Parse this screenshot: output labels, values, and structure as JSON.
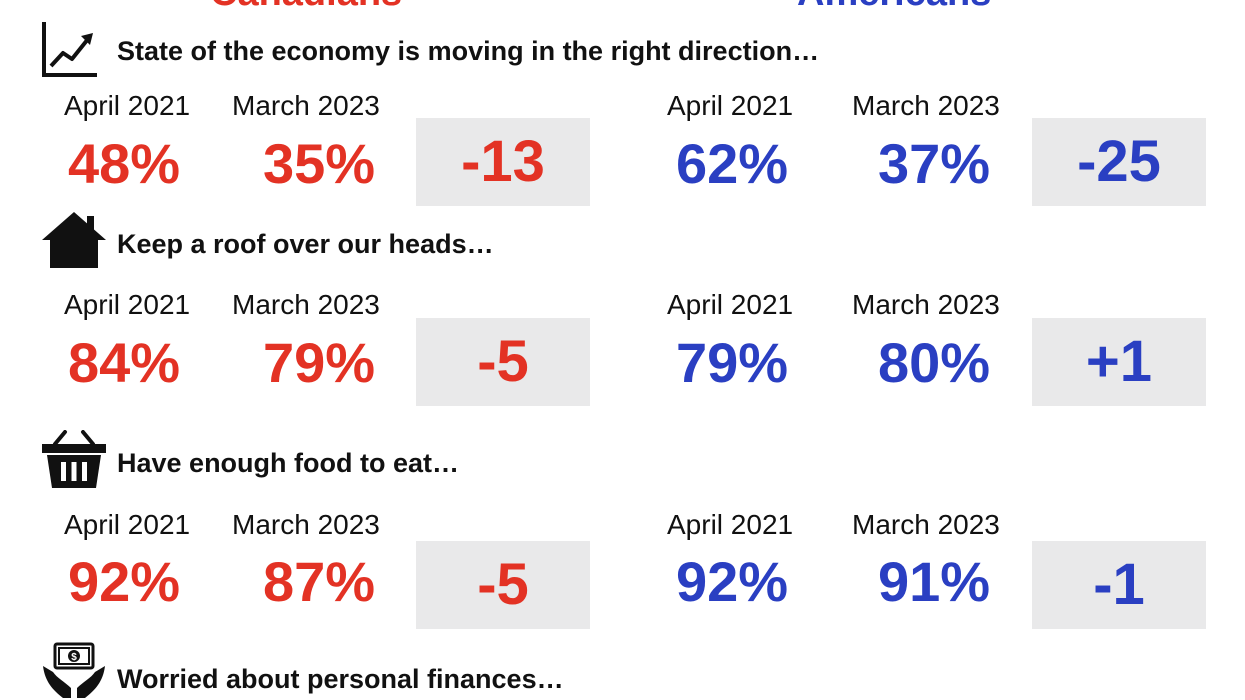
{
  "columns": {
    "left": {
      "label": "Canadians",
      "color": "#e33224"
    },
    "right": {
      "label": "Americans",
      "color": "#2a3fc2"
    }
  },
  "period_labels": {
    "before": "April 2021",
    "after": "March 2023"
  },
  "sections": [
    {
      "icon": "line-chart-icon",
      "title": "State of the economy is moving in the right direction…",
      "canada": {
        "before": "48%",
        "after": "35%",
        "change": "-13"
      },
      "usa": {
        "before": "62%",
        "after": "37%",
        "change": "-25"
      }
    },
    {
      "icon": "house-icon",
      "title": "Keep a roof over our heads…",
      "canada": {
        "before": "84%",
        "after": "79%",
        "change": "-5"
      },
      "usa": {
        "before": "79%",
        "after": "80%",
        "change": "+1"
      }
    },
    {
      "icon": "grocery-basket-icon",
      "title": "Have enough food to eat…",
      "canada": {
        "before": "92%",
        "after": "87%",
        "change": "-5"
      },
      "usa": {
        "before": "92%",
        "after": "91%",
        "change": "-1"
      }
    },
    {
      "icon": "money-hands-icon",
      "title": "Worried about personal finances…"
    }
  ]
}
